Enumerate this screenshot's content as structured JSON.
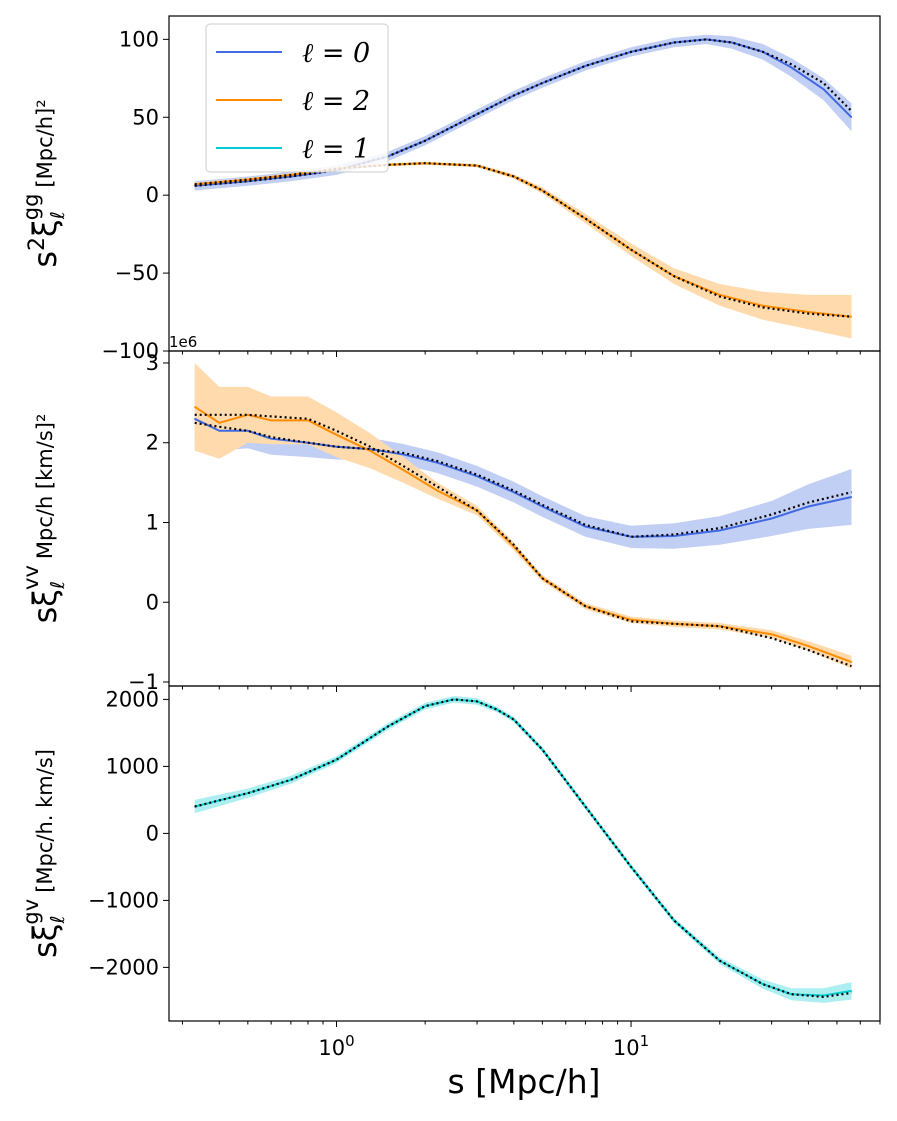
{
  "chart_data": [
    {
      "type": "line",
      "panel": "top",
      "ylabel_main": "s²ξ_ℓ^gg",
      "ylabel_parts": {
        "prefix": "s",
        "sup1": "2",
        "xi": "ξ",
        "sub": "ℓ",
        "sup2": "gg",
        "unit": "[Mpc/h]²"
      },
      "ylim": [
        -100,
        115
      ],
      "yticks": [
        -100,
        -50,
        0,
        50,
        100
      ],
      "yticklabels": [
        "−100",
        "−50",
        "0",
        "50",
        "100"
      ],
      "series": [
        {
          "name": "ℓ = 0",
          "color": "#4169e1",
          "x": [
            0.33,
            0.5,
            0.7,
            1.0,
            1.5,
            2,
            3,
            4,
            5,
            7,
            10,
            14,
            18,
            22,
            28,
            35,
            45,
            56
          ],
          "y": [
            6,
            9,
            12,
            16,
            25,
            35,
            52,
            64,
            72,
            83,
            92,
            98,
            100,
            98,
            92,
            82,
            68,
            50
          ],
          "band": [
            3,
            3,
            3,
            3,
            3,
            3,
            3,
            3,
            3,
            3,
            3,
            3,
            3,
            4,
            5,
            6,
            7,
            9
          ],
          "model": [
            6,
            9,
            12,
            16,
            25,
            35,
            52,
            64,
            72,
            83,
            92,
            98,
            100,
            98,
            92,
            84,
            72,
            54
          ]
        },
        {
          "name": "ℓ = 2",
          "color": "#ff8c00",
          "x": [
            0.33,
            0.5,
            0.7,
            1.0,
            1.5,
            2,
            3,
            4,
            5,
            7,
            10,
            14,
            20,
            28,
            40,
            56
          ],
          "y": [
            7,
            10,
            13,
            17,
            19.5,
            20.5,
            19,
            12,
            3,
            -15,
            -35,
            -52,
            -64,
            -71,
            -75,
            -78
          ],
          "band": [
            1,
            1,
            1,
            1,
            1,
            1,
            1,
            1.5,
            2,
            3,
            4,
            5,
            7,
            9,
            11,
            14
          ],
          "model": [
            7,
            10,
            13,
            17,
            19.5,
            20.5,
            19,
            12,
            3,
            -15,
            -35,
            -52,
            -65,
            -72,
            -76,
            -78
          ]
        }
      ]
    },
    {
      "type": "line",
      "panel": "middle",
      "ylabel_parts": {
        "prefix": "s",
        "xi": "ξ",
        "sub": "ℓ",
        "sup2": "vv",
        "unit": "Mpc/h [km/s]²"
      },
      "offset_text": "1e6",
      "ylim": [
        -1.05,
        3.15
      ],
      "yticks": [
        -1,
        0,
        1,
        2,
        3
      ],
      "yticklabels": [
        "−1",
        "0",
        "1",
        "2",
        "3"
      ],
      "series": [
        {
          "name": "ℓ = 0",
          "color": "#4169e1",
          "x": [
            0.33,
            0.4,
            0.5,
            0.6,
            0.8,
            1.0,
            1.3,
            1.7,
            2.2,
            3,
            4,
            5,
            7,
            10,
            14,
            20,
            30,
            40,
            56
          ],
          "y": [
            2.3,
            2.15,
            2.15,
            2.05,
            2.0,
            1.95,
            1.92,
            1.85,
            1.75,
            1.58,
            1.38,
            1.2,
            0.95,
            0.82,
            0.83,
            0.9,
            1.05,
            1.2,
            1.32
          ],
          "band": [
            0.25,
            0.25,
            0.22,
            0.2,
            0.18,
            0.16,
            0.14,
            0.13,
            0.13,
            0.13,
            0.13,
            0.13,
            0.13,
            0.14,
            0.16,
            0.18,
            0.22,
            0.28,
            0.35
          ],
          "model": [
            2.25,
            2.2,
            2.15,
            2.07,
            2.0,
            1.95,
            1.92,
            1.87,
            1.77,
            1.6,
            1.4,
            1.22,
            0.97,
            0.82,
            0.85,
            0.93,
            1.1,
            1.25,
            1.38
          ]
        },
        {
          "name": "ℓ = 2",
          "color": "#ff8c00",
          "x": [
            0.33,
            0.4,
            0.5,
            0.6,
            0.8,
            1.0,
            1.3,
            1.7,
            2.2,
            3,
            4,
            5,
            7,
            10,
            14,
            20,
            30,
            40,
            56
          ],
          "y": [
            2.45,
            2.25,
            2.35,
            2.28,
            2.28,
            2.1,
            1.9,
            1.65,
            1.4,
            1.15,
            0.7,
            0.3,
            -0.05,
            -0.22,
            -0.27,
            -0.3,
            -0.4,
            -0.55,
            -0.75
          ],
          "band": [
            0.55,
            0.45,
            0.35,
            0.3,
            0.3,
            0.28,
            0.22,
            0.16,
            0.1,
            0.06,
            0.05,
            0.04,
            0.04,
            0.04,
            0.04,
            0.04,
            0.05,
            0.06,
            0.08
          ],
          "model": [
            2.35,
            2.35,
            2.35,
            2.33,
            2.3,
            2.15,
            1.95,
            1.7,
            1.45,
            1.15,
            0.72,
            0.3,
            -0.05,
            -0.24,
            -0.27,
            -0.3,
            -0.45,
            -0.6,
            -0.8
          ]
        }
      ]
    },
    {
      "type": "line",
      "panel": "bottom",
      "ylabel_parts": {
        "prefix": "s",
        "xi": "ξ",
        "sub": "ℓ",
        "sup2": "gv",
        "unit": "[Mpc/h. km/s]"
      },
      "ylim": [
        -2800,
        2200
      ],
      "yticks": [
        -2000,
        -1000,
        0,
        1000,
        2000
      ],
      "yticklabels": [
        "−2000",
        "−1000",
        "0",
        "1000",
        "2000"
      ],
      "series": [
        {
          "name": "ℓ = 1",
          "color": "#00ced1",
          "x": [
            0.33,
            0.5,
            0.7,
            1.0,
            1.5,
            2,
            2.5,
            3,
            3.5,
            4,
            5,
            7,
            10,
            14,
            20,
            28,
            35,
            45,
            56
          ],
          "y": [
            400,
            600,
            800,
            1100,
            1600,
            1900,
            2000,
            1970,
            1850,
            1700,
            1250,
            400,
            -500,
            -1300,
            -1900,
            -2250,
            -2400,
            -2420,
            -2350
          ],
          "band": [
            100,
            70,
            60,
            50,
            50,
            50,
            50,
            50,
            40,
            40,
            40,
            40,
            40,
            40,
            50,
            70,
            90,
            110,
            130
          ],
          "model": [
            400,
            600,
            800,
            1100,
            1600,
            1900,
            2000,
            1970,
            1850,
            1700,
            1250,
            400,
            -500,
            -1300,
            -1900,
            -2250,
            -2400,
            -2440,
            -2380
          ]
        }
      ]
    }
  ],
  "x_axis": {
    "label": "s [Mpc/h]",
    "scale": "log",
    "xlim": [
      0.27,
      70
    ],
    "major_ticks": [
      {
        "value": 1,
        "base": "10",
        "exp": "0"
      },
      {
        "value": 10,
        "base": "10",
        "exp": "1"
      }
    ]
  },
  "legend": {
    "placement": "top-left",
    "entries": [
      {
        "label": "ℓ = 0",
        "color": "#4169e1"
      },
      {
        "label": "ℓ = 2",
        "color": "#ff8c00"
      },
      {
        "label": "ℓ = 1",
        "color": "#00ced1"
      }
    ]
  },
  "model_line_style": "dotted black"
}
